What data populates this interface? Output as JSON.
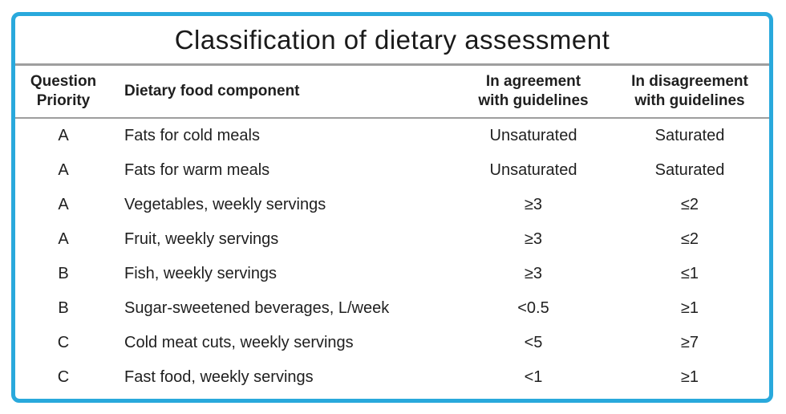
{
  "title": "Classification of dietary assessment",
  "colors": {
    "frame_border": "#29a9dc",
    "separator": "#9e9e9e",
    "text": "#1f1f1f",
    "background": "#ffffff"
  },
  "table": {
    "columns": [
      {
        "label": "Question\nPriority"
      },
      {
        "label": "Dietary food component"
      },
      {
        "label": "In agreement\nwith guidelines"
      },
      {
        "label": "In disagreement\nwith guidelines"
      }
    ],
    "rows": [
      {
        "priority": "A",
        "component": "Fats for cold meals",
        "agreement": "Unsaturated",
        "disagreement": "Saturated"
      },
      {
        "priority": "A",
        "component": "Fats for warm meals",
        "agreement": "Unsaturated",
        "disagreement": "Saturated"
      },
      {
        "priority": "A",
        "component": "Vegetables, weekly servings",
        "agreement": "≥3",
        "disagreement": "≤2"
      },
      {
        "priority": "A",
        "component": "Fruit, weekly servings",
        "agreement": "≥3",
        "disagreement": "≤2"
      },
      {
        "priority": "B",
        "component": "Fish, weekly servings",
        "agreement": "≥3",
        "disagreement": "≤1"
      },
      {
        "priority": "B",
        "component": "Sugar-sweetened beverages, L/week",
        "agreement": "<0.5",
        "disagreement": "≥1"
      },
      {
        "priority": "C",
        "component": "Cold meat cuts, weekly servings",
        "agreement": "<5",
        "disagreement": "≥7"
      },
      {
        "priority": "C",
        "component": "Fast food, weekly servings",
        "agreement": "<1",
        "disagreement": "≥1"
      }
    ]
  },
  "chart_data": {
    "type": "table",
    "title": "Classification of dietary assessment",
    "columns": [
      "Question Priority",
      "Dietary food component",
      "In agreement with guidelines",
      "In disagreement with guidelines"
    ],
    "rows": [
      [
        "A",
        "Fats for cold meals",
        "Unsaturated",
        "Saturated"
      ],
      [
        "A",
        "Fats for warm meals",
        "Unsaturated",
        "Saturated"
      ],
      [
        "A",
        "Vegetables, weekly servings",
        "≥3",
        "≤2"
      ],
      [
        "A",
        "Fruit, weekly servings",
        "≥3",
        "≤2"
      ],
      [
        "B",
        "Fish, weekly servings",
        "≥3",
        "≤1"
      ],
      [
        "B",
        "Sugar-sweetened beverages, L/week",
        "<0.5",
        "≥1"
      ],
      [
        "C",
        "Cold meat cuts, weekly servings",
        "<5",
        "≥7"
      ],
      [
        "C",
        "Fast food, weekly servings",
        "<1",
        "≥1"
      ]
    ]
  }
}
